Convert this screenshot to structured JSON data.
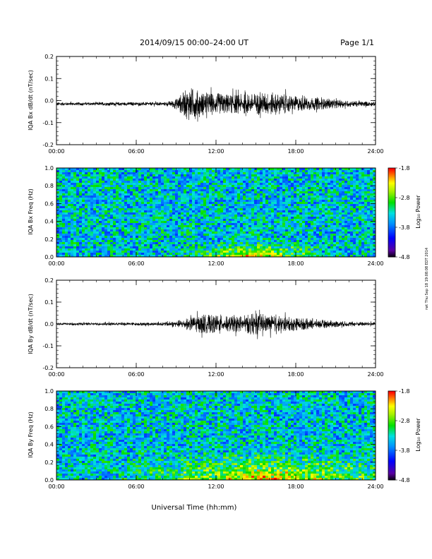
{
  "header": {
    "date_range": "2014/09/15  00:00–24:00 UT",
    "page": "Page 1/1"
  },
  "footer": {
    "xlabel": "Universal Time (hh:mm)"
  },
  "side_note": "rwt Thu Sep 18 19:08:08 EDT 2014",
  "colorbar": {
    "label": "Log₁₀ Power",
    "ticks": [
      -1.8,
      -2.8,
      -3.8,
      -4.8
    ],
    "tick_labels": [
      "-1.8",
      "-2.8",
      "-3.8",
      "-4.8"
    ],
    "range": [
      -4.8,
      -1.8
    ],
    "colors": [
      "#000000",
      "#5a00a0",
      "#0000ff",
      "#0090ff",
      "#00e0e0",
      "#00e000",
      "#a0f000",
      "#ffff00",
      "#ff8000",
      "#ff0000"
    ]
  },
  "chart_data": [
    {
      "type": "line",
      "id": "bx-dbdt",
      "ylabel": "IQA Bx dB/dt (nT/sec)",
      "xlim": [
        "00:00",
        "24:00"
      ],
      "ylim": [
        -0.2,
        0.2
      ],
      "x_ticks": [
        "00:00",
        "06:00",
        "12:00",
        "18:00",
        "24:00"
      ],
      "y_ticks": [
        -0.2,
        -0.1,
        0.0,
        0.1,
        0.2
      ],
      "y_tick_labels": [
        "-0.2",
        "-0.1",
        "0.0",
        "0.1",
        "0.2"
      ],
      "series": [
        {
          "color": "#000000",
          "envelope_hours": [
            0,
            2,
            4,
            6,
            8,
            8.5,
            9,
            10,
            11,
            12,
            13,
            14,
            15,
            16,
            17,
            18,
            19,
            20,
            21,
            22,
            23,
            24
          ],
          "envelope_amplitude": [
            0.008,
            0.007,
            0.008,
            0.008,
            0.008,
            0.012,
            0.025,
            0.08,
            0.055,
            0.05,
            0.045,
            0.045,
            0.05,
            0.055,
            0.045,
            0.035,
            0.03,
            0.025,
            0.02,
            0.015,
            0.012,
            0.01
          ],
          "offset": -0.015
        }
      ]
    },
    {
      "type": "heatmap",
      "id": "bx-freq",
      "ylabel": "IQA Bx Freq (Hz)",
      "xlim": [
        "00:00",
        "24:00"
      ],
      "ylim": [
        0.0,
        1.0
      ],
      "x_ticks": [
        "00:00",
        "06:00",
        "12:00",
        "18:00",
        "24:00"
      ],
      "y_ticks": [
        0.0,
        0.2,
        0.4,
        0.6,
        0.8,
        1.0
      ],
      "y_tick_labels": [
        "0.0",
        "0.2",
        "0.4",
        "0.6",
        "0.8",
        "1.0"
      ],
      "colorbar_range": [
        -4.8,
        -1.8
      ],
      "background_log_power": -3.4,
      "low_freq_band": {
        "hours": [
          8,
          20
        ],
        "peak_hour": 15,
        "freq_max": 0.08,
        "peak_log_power": -1.9
      }
    },
    {
      "type": "line",
      "id": "by-dbdt",
      "ylabel": "IQA By dB/dt (nT/sec)",
      "xlim": [
        "00:00",
        "24:00"
      ],
      "ylim": [
        -0.2,
        0.2
      ],
      "x_ticks": [
        "00:00",
        "06:00",
        "12:00",
        "18:00",
        "24:00"
      ],
      "y_ticks": [
        -0.2,
        -0.1,
        0.0,
        0.1,
        0.2
      ],
      "y_tick_labels": [
        "-0.2",
        "-0.1",
        "0.0",
        "0.1",
        "0.2"
      ],
      "series": [
        {
          "color": "#000000",
          "envelope_hours": [
            0,
            2,
            4,
            6,
            8,
            9,
            10,
            11,
            12,
            13,
            14,
            15,
            16,
            17,
            18,
            19,
            20,
            21,
            22,
            23,
            24
          ],
          "envelope_amplitude": [
            0.006,
            0.006,
            0.007,
            0.007,
            0.008,
            0.015,
            0.03,
            0.045,
            0.04,
            0.035,
            0.04,
            0.05,
            0.04,
            0.035,
            0.03,
            0.025,
            0.02,
            0.015,
            0.012,
            0.01,
            0.008
          ],
          "offset": 0.0
        }
      ]
    },
    {
      "type": "heatmap",
      "id": "by-freq",
      "ylabel": "IQA By Freq (Hz)",
      "xlim": [
        "00:00",
        "24:00"
      ],
      "ylim": [
        0.0,
        1.0
      ],
      "x_ticks": [
        "00:00",
        "06:00",
        "12:00",
        "18:00",
        "24:00"
      ],
      "y_ticks": [
        0.0,
        0.2,
        0.4,
        0.6,
        0.8,
        1.0
      ],
      "y_tick_labels": [
        "0.0",
        "0.2",
        "0.4",
        "0.6",
        "0.8",
        "1.0"
      ],
      "colorbar_range": [
        -4.8,
        -1.8
      ],
      "background_log_power": -3.4,
      "low_freq_band": {
        "hours": [
          0,
          24
        ],
        "peak_hour": 16,
        "freq_max": 0.15,
        "peak_log_power": -2.0
      }
    }
  ]
}
